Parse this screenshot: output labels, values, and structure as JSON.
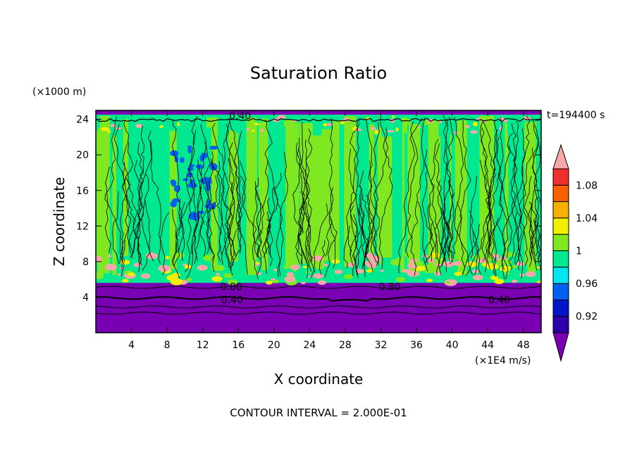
{
  "chart_data": {
    "type": "heatmap",
    "title": "Saturation Ratio",
    "xlabel": "X coordinate",
    "ylabel": "Z coordinate",
    "x_unit": "(×1E4 m/s)",
    "y_unit": "(×1000 m)",
    "time_label": "t=194400 s",
    "footer": "CONTOUR INTERVAL = 2.000E-01",
    "xlim": [
      0,
      50
    ],
    "ylim": [
      0,
      25
    ],
    "x_ticks": [
      4,
      8,
      12,
      16,
      20,
      24,
      28,
      32,
      36,
      40,
      44,
      48
    ],
    "y_ticks": [
      4,
      8,
      12,
      16,
      20,
      24
    ],
    "contour_labels": [
      {
        "text": "0.40",
        "x": 16.2,
        "y": 24.4
      },
      {
        "text": "0.80",
        "x": 15.2,
        "y": 5.2
      },
      {
        "text": "0.40",
        "x": 15.3,
        "y": 3.7
      },
      {
        "text": "0.80",
        "x": 33.0,
        "y": 5.2
      },
      {
        "text": "0.40",
        "x": 45.3,
        "y": 3.7
      }
    ],
    "colorbar": {
      "levels": [
        {
          "color": "#7a00b4"
        },
        {
          "color": "#2e00a8"
        },
        {
          "color": "#0014c8"
        },
        {
          "color": "#0060f0"
        },
        {
          "color": "#00e6f0"
        },
        {
          "color": "#00e890"
        },
        {
          "color": "#80e820"
        },
        {
          "color": "#f0f000"
        },
        {
          "color": "#f8b000"
        },
        {
          "color": "#f86000"
        },
        {
          "color": "#f03030"
        },
        {
          "color": "#f8a8a8"
        }
      ],
      "labels": [
        {
          "text": "0.92",
          "level": 1.5
        },
        {
          "text": "0.96",
          "level": 3.5
        },
        {
          "text": "1",
          "level": 5.5
        },
        {
          "text": "1.04",
          "level": 7.5
        },
        {
          "text": "1.08",
          "level": 9.5
        }
      ]
    },
    "field_colors": {
      "dry": "#7a00b4",
      "near_saturated": "#00e890",
      "slightly_super": "#80e820",
      "super": "#f0f000",
      "moist_layer": "#f8a8a8",
      "sub_saturated": "#0060f0"
    }
  }
}
